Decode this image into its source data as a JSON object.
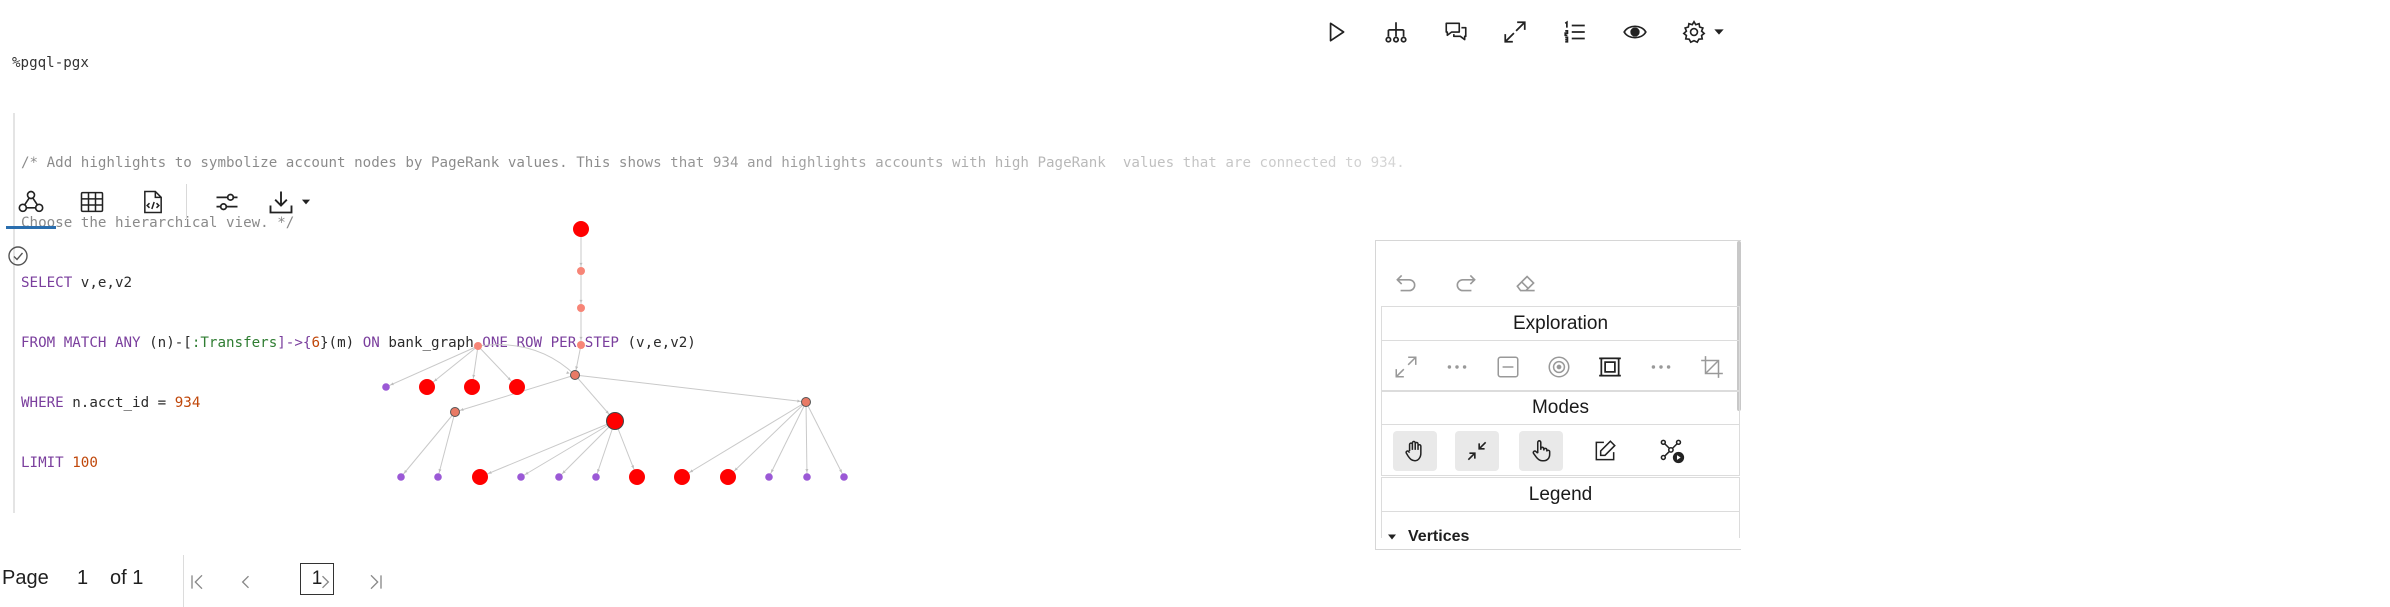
{
  "code": {
    "magic": "%pgql-pgx",
    "comment_line1": "/* Add highlights to symbolize account nodes by PageRank values. This shows that 934 and highlights accounts with high PageRank  values that are connected to 934.",
    "comment_line2": "Choose the hierarchical view. */",
    "select_kw": "SELECT",
    "select_vars": " v,e,v2",
    "from_kw": "FROM MATCH ANY",
    "pattern_start": " (n)-[",
    "edge_label": ":Transfers",
    "pattern_mid": "]->{",
    "quant": "6",
    "pattern_end": "}(m) ",
    "on_kw": "ON",
    "graph_name": " bank_graph ",
    "rows_kw": "ONE ROW PER STEP",
    "rows_vars": " (v,e,v2)",
    "where_kw": "WHERE",
    "where_expr": " n.acct_id = ",
    "where_val": "934",
    "limit_kw": "LIMIT",
    "limit_val": "100"
  },
  "toolbar": {
    "buttons": [
      "run-icon",
      "hierarchy-icon",
      "comments-icon",
      "expand-icon",
      "numbered-list-icon",
      "eye-icon",
      "gear-icon",
      "caret-down-icon"
    ]
  },
  "tabs": {
    "items": [
      "graph-view-icon",
      "table-view-icon",
      "code-view-icon",
      "settings-sliders-icon",
      "download-icon"
    ],
    "active": "graph-view-icon"
  },
  "colors": {
    "high_rank": "#ff0000",
    "mid_rank": "#f78577",
    "connector": "#e97a65",
    "low_rank": "#9b59d6",
    "edge": "#c9c9c9",
    "accent": "#2a6eae"
  },
  "graph": {
    "nodes": [
      {
        "id": "a",
        "tier": "high"
      },
      {
        "id": "b",
        "tier": "mid"
      },
      {
        "id": "c",
        "tier": "mid"
      },
      {
        "id": "d",
        "tier": "mid"
      },
      {
        "id": "e",
        "tier": "mid"
      },
      {
        "id": "f",
        "tier": "connector"
      },
      {
        "id": "g",
        "tier": "low"
      },
      {
        "id": "h",
        "tier": "high"
      },
      {
        "id": "i",
        "tier": "high"
      },
      {
        "id": "j",
        "tier": "high"
      },
      {
        "id": "k",
        "tier": "connector"
      },
      {
        "id": "l",
        "tier": "high-outlined"
      },
      {
        "id": "m",
        "tier": "connector"
      },
      {
        "id": "n1",
        "tier": "low"
      },
      {
        "id": "n2",
        "tier": "low"
      },
      {
        "id": "n3",
        "tier": "high"
      },
      {
        "id": "n4",
        "tier": "low"
      },
      {
        "id": "n5",
        "tier": "low"
      },
      {
        "id": "n6",
        "tier": "low"
      },
      {
        "id": "n7",
        "tier": "high"
      },
      {
        "id": "n8",
        "tier": "high"
      },
      {
        "id": "n9",
        "tier": "high"
      },
      {
        "id": "n10",
        "tier": "low"
      },
      {
        "id": "n11",
        "tier": "low"
      },
      {
        "id": "n12",
        "tier": "low"
      }
    ],
    "edges": [
      [
        "a",
        "b"
      ],
      [
        "b",
        "c"
      ],
      [
        "c",
        "d"
      ],
      [
        "e",
        "g"
      ],
      [
        "e",
        "h"
      ],
      [
        "e",
        "i"
      ],
      [
        "e",
        "j"
      ],
      [
        "e",
        "f"
      ],
      [
        "d",
        "f"
      ],
      [
        "f",
        "k"
      ],
      [
        "f",
        "l"
      ],
      [
        "f",
        "m"
      ],
      [
        "k",
        "n1"
      ],
      [
        "k",
        "n2"
      ],
      [
        "l",
        "n3"
      ],
      [
        "l",
        "n4"
      ],
      [
        "l",
        "n5"
      ],
      [
        "l",
        "n6"
      ],
      [
        "l",
        "n7"
      ],
      [
        "m",
        "n8"
      ],
      [
        "m",
        "n9"
      ],
      [
        "m",
        "n10"
      ],
      [
        "m",
        "n11"
      ],
      [
        "m",
        "n12"
      ]
    ]
  },
  "panel": {
    "history_icons": [
      "undo-icon",
      "redo-icon",
      "eraser-icon"
    ],
    "exploration": {
      "title": "Exploration",
      "icons": [
        "expand-nodes-icon",
        "more-icon",
        "collapse-icon",
        "focus-icon",
        "fit-to-screen-icon",
        "more-icon",
        "crop-icon"
      ]
    },
    "modes": {
      "title": "Modes",
      "icons": [
        "pan-hand-icon",
        "shrink-icon",
        "select-pointer-icon",
        "edit-icon",
        "network-play-icon"
      ]
    },
    "legend": {
      "title": "Legend",
      "vertices_label": "Vertices"
    }
  },
  "pager": {
    "page_label": "Page",
    "current": "1",
    "of_label": "of 1",
    "page_box": "1"
  }
}
